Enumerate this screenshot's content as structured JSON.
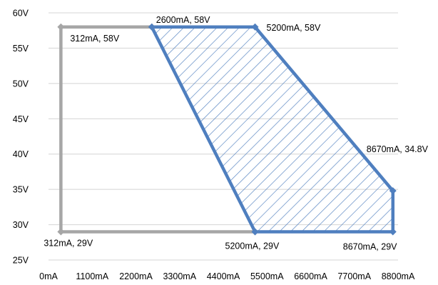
{
  "chart_data": {
    "type": "scatter",
    "title": "",
    "xlabel": "",
    "ylabel": "",
    "xlim": [
      0,
      8800
    ],
    "ylim": [
      25,
      60
    ],
    "x_tick_values": [
      0,
      1100,
      2200,
      3300,
      4400,
      5500,
      6600,
      7700,
      8800
    ],
    "x_tick_labels": [
      "0mA",
      "1100mA",
      "2200mA",
      "3300mA",
      "4400mA",
      "5500mA",
      "6600mA",
      "7700mA",
      "8800mA"
    ],
    "y_tick_values": [
      25,
      30,
      35,
      40,
      45,
      50,
      55,
      60
    ],
    "y_tick_labels": [
      "25V",
      "30V",
      "35V",
      "40V",
      "45V",
      "50V",
      "55V",
      "60V"
    ],
    "grid": "horizontal",
    "series": [
      {
        "color": "#a6a6a6",
        "closed": false,
        "hatched": false,
        "points": [
          {
            "x": 2600,
            "y": 58
          },
          {
            "x": 312,
            "y": 58
          },
          {
            "x": 312,
            "y": 29
          },
          {
            "x": 5200,
            "y": 29
          }
        ]
      },
      {
        "color": "#4f7fbf",
        "closed": true,
        "hatched": true,
        "points": [
          {
            "x": 2600,
            "y": 58
          },
          {
            "x": 5200,
            "y": 58
          },
          {
            "x": 8670,
            "y": 34.8
          },
          {
            "x": 8670,
            "y": 29
          },
          {
            "x": 5200,
            "y": 29
          }
        ]
      }
    ],
    "annotations": [
      {
        "text": "312mA, 58V",
        "x": 312,
        "y": 58
      },
      {
        "text": "312mA, 29V",
        "x": 312,
        "y": 29
      },
      {
        "text": "2600mA, 58V",
        "x": 2600,
        "y": 58
      },
      {
        "text": "5200mA, 58V",
        "x": 5200,
        "y": 58
      },
      {
        "text": "8670mA, 34.8V",
        "x": 8670,
        "y": 34.8
      },
      {
        "text": "5200mA, 29V",
        "x": 5200,
        "y": 29
      },
      {
        "text": "8670mA, 29V",
        "x": 8670,
        "y": 29
      }
    ]
  }
}
